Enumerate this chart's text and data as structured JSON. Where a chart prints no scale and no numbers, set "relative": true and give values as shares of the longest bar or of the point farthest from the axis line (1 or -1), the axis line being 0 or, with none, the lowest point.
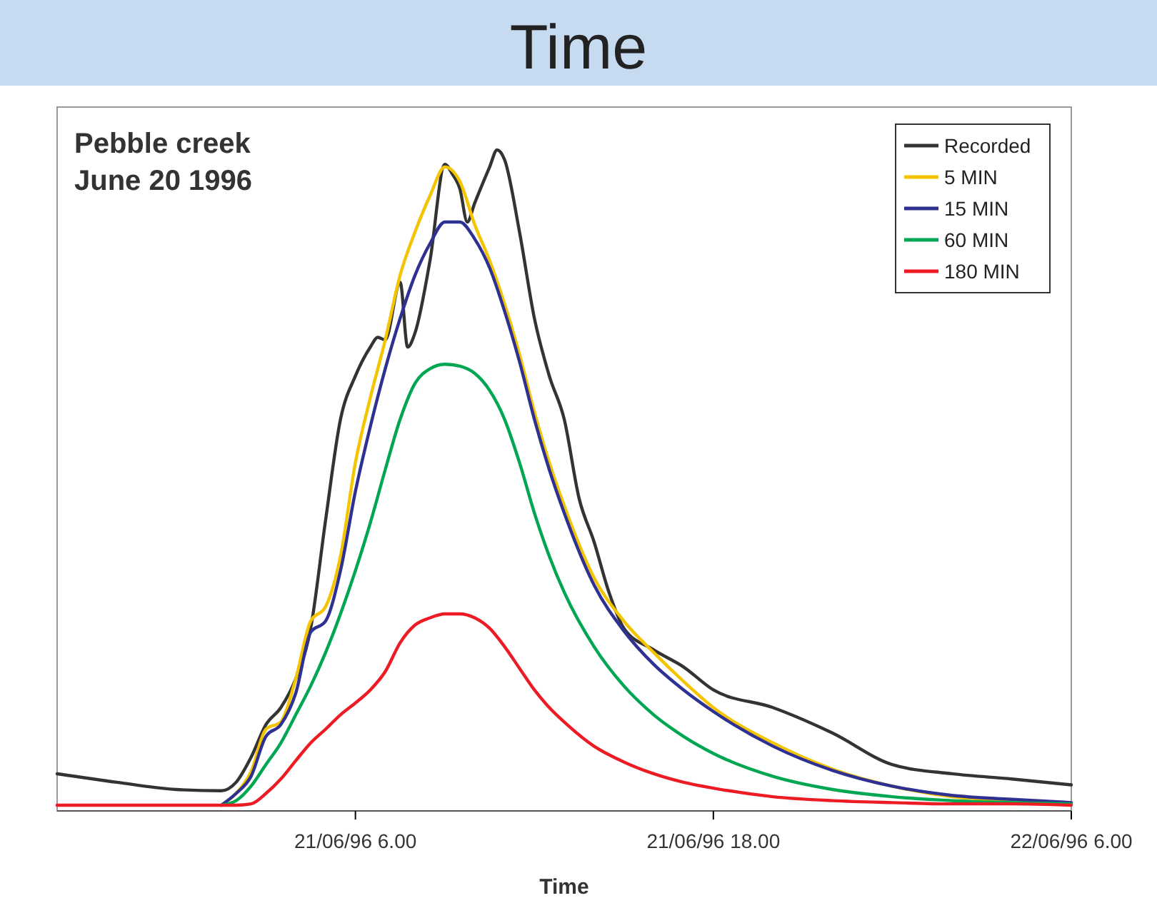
{
  "chart_data": {
    "type": "line",
    "title": "Pebble creek",
    "subtitle": "June 20 1996",
    "xlabel": "Time",
    "annotations": [
      "Time"
    ],
    "relative": true,
    "legend": "top right",
    "grid": false,
    "marker": "none",
    "line_style": "solid",
    "xlim": [
      "1996-06-20T20:00",
      "1996-06-22T06:00"
    ],
    "xticks": [
      {
        "value": "1996-06-21T06:00",
        "label": "21/06/96 6.00"
      },
      {
        "value": "1996-06-21T18:00",
        "label": "21/06/96 18.00"
      },
      {
        "value": "1996-06-22T06:00",
        "label": "22/06/96 6.00"
      }
    ],
    "x": [
      "1996-06-20T20:00",
      "1996-06-21T00:00",
      "1996-06-21T01:30",
      "1996-06-21T02:00",
      "1996-06-21T02:30",
      "1996-06-21T03:00",
      "1996-06-21T03:30",
      "1996-06-21T04:00",
      "1996-06-21T04:30",
      "1996-06-21T05:00",
      "1996-06-21T05:30",
      "1996-06-21T06:00",
      "1996-06-21T06:30",
      "1996-06-21T07:00",
      "1996-06-21T07:30",
      "1996-06-21T08:00",
      "1996-06-21T08:30",
      "1996-06-21T09:00",
      "1996-06-21T09:30",
      "1996-06-21T10:00",
      "1996-06-21T10:30",
      "1996-06-21T11:00",
      "1996-06-21T11:30",
      "1996-06-21T12:00",
      "1996-06-21T12:30",
      "1996-06-21T13:00",
      "1996-06-21T14:00",
      "1996-06-21T15:00",
      "1996-06-21T16:00",
      "1996-06-21T17:00",
      "1996-06-21T18:00",
      "1996-06-21T20:00",
      "1996-06-21T22:00",
      "1996-06-22T00:00",
      "1996-06-22T02:00",
      "1996-06-22T04:00",
      "1996-06-22T06:00"
    ],
    "series": [
      {
        "name": "Recorded",
        "color": "#333333",
        "x": [
          "1996-06-20T20:00",
          "1996-06-20T22:00",
          "1996-06-21T00:00",
          "1996-06-21T01:30",
          "1996-06-21T02:00",
          "1996-06-21T02:30",
          "1996-06-21T03:00",
          "1996-06-21T03:30",
          "1996-06-21T04:00",
          "1996-06-21T04:30",
          "1996-06-21T05:00",
          "1996-06-21T05:30",
          "1996-06-21T06:00",
          "1996-06-21T06:30",
          "1996-06-21T06:45",
          "1996-06-21T07:00",
          "1996-06-21T07:30",
          "1996-06-21T07:45",
          "1996-06-21T08:00",
          "1996-06-21T08:30",
          "1996-06-21T09:00",
          "1996-06-21T09:15",
          "1996-06-21T09:30",
          "1996-06-21T09:45",
          "1996-06-21T10:00",
          "1996-06-21T10:30",
          "1996-06-21T10:45",
          "1996-06-21T11:00",
          "1996-06-21T11:30",
          "1996-06-21T12:00",
          "1996-06-21T12:30",
          "1996-06-21T13:00",
          "1996-06-21T13:30",
          "1996-06-21T14:00",
          "1996-06-21T14:30",
          "1996-06-21T15:00",
          "1996-06-21T16:00",
          "1996-06-21T17:00",
          "1996-06-21T18:00",
          "1996-06-21T20:00",
          "1996-06-21T22:00",
          "1996-06-22T00:00",
          "1996-06-22T02:00",
          "1996-06-22T04:00",
          "1996-06-22T06:00"
        ],
        "values": [
          0.048,
          0.035,
          0.024,
          0.022,
          0.035,
          0.073,
          0.123,
          0.149,
          0.193,
          0.27,
          0.435,
          0.589,
          0.655,
          0.699,
          0.714,
          0.71,
          0.798,
          0.699,
          0.721,
          0.831,
          0.978,
          0.963,
          0.941,
          0.89,
          0.919,
          0.974,
          1,
          0.985,
          0.875,
          0.743,
          0.655,
          0.589,
          0.468,
          0.402,
          0.325,
          0.27,
          0.237,
          0.211,
          0.176,
          0.149,
          0.11,
          0.062,
          0.048,
          0.04,
          0.031
        ]
      },
      {
        "name": "5 MIN",
        "color": "#f5c400",
        "values": [
          null,
          null,
          0,
          0.018,
          0.051,
          0.116,
          0.127,
          0.193,
          0.281,
          0.303,
          0.38,
          0.523,
          0.622,
          0.71,
          0.809,
          0.875,
          0.93,
          0.974,
          0.952,
          0.886,
          0.831,
          0.765,
          0.688,
          0.6,
          0.523,
          0.457,
          0.347,
          0.281,
          0.233,
          0.189,
          0.149,
          0.095,
          0.055,
          0.029,
          0.013,
          0.007,
          0.002
        ]
      },
      {
        "name": "15 MIN",
        "color": "#2e3192",
        "values": [
          null,
          null,
          0,
          0.018,
          0.044,
          0.105,
          0.123,
          0.171,
          0.264,
          0.281,
          0.358,
          0.479,
          0.578,
          0.666,
          0.743,
          0.809,
          0.857,
          0.89,
          0.89,
          0.864,
          0.82,
          0.754,
          0.677,
          0.589,
          0.512,
          0.446,
          0.336,
          0.266,
          0.215,
          0.176,
          0.143,
          0.09,
          0.053,
          0.029,
          0.015,
          0.009,
          0.004
        ]
      },
      {
        "name": "60 MIN",
        "color": "#00a651",
        "values": [
          null,
          null,
          0,
          0.007,
          0.029,
          0.062,
          0.095,
          0.138,
          0.182,
          0.233,
          0.292,
          0.358,
          0.431,
          0.512,
          0.589,
          0.644,
          0.666,
          0.673,
          0.67,
          0.659,
          0.633,
          0.589,
          0.523,
          0.446,
          0.38,
          0.325,
          0.242,
          0.182,
          0.138,
          0.105,
          0.079,
          0.044,
          0.024,
          0.013,
          0.007,
          0.004,
          0.002
        ]
      },
      {
        "name": "180 MIN",
        "color": "#ed1c24",
        "values": [
          0,
          0,
          0,
          0,
          0.002,
          0.018,
          0.04,
          0.068,
          0.095,
          0.116,
          0.138,
          0.156,
          0.176,
          0.204,
          0.248,
          0.275,
          0.286,
          0.292,
          0.292,
          0.286,
          0.27,
          0.242,
          0.209,
          0.176,
          0.149,
          0.127,
          0.09,
          0.066,
          0.048,
          0.035,
          0.026,
          0.013,
          0.007,
          0.004,
          0.002,
          0.002,
          0
        ]
      }
    ]
  }
}
